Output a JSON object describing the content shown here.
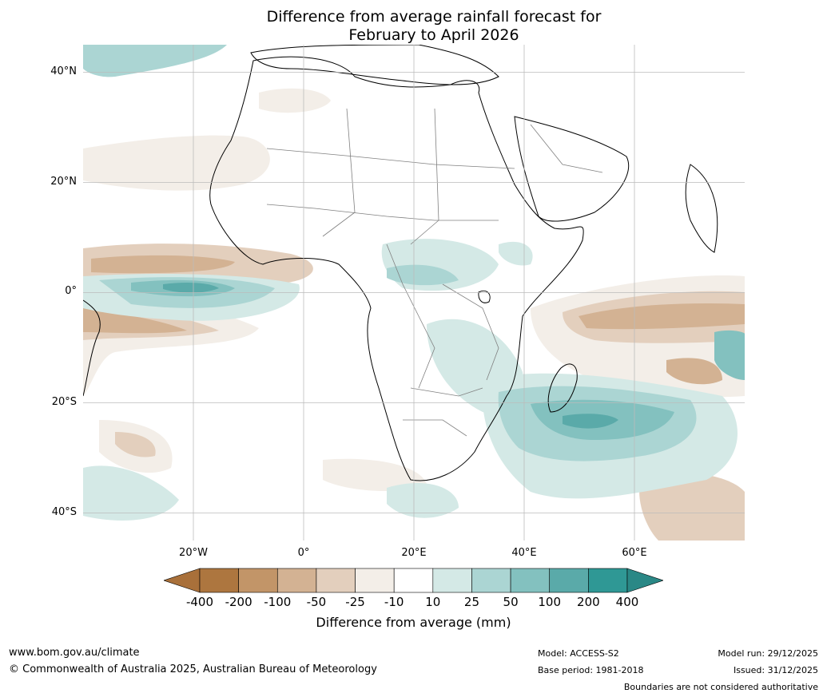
{
  "title": {
    "line1": "Difference from average rainfall forecast for",
    "line2": "February to April 2026"
  },
  "map": {
    "region": "Africa",
    "lat_labels": [
      "40°N",
      "20°N",
      "0°",
      "20°S",
      "40°S"
    ],
    "lon_labels": [
      "20°W",
      "0°",
      "20°E",
      "40°E",
      "60°E"
    ]
  },
  "colorbar": {
    "ticks": [
      "-400",
      "-200",
      "-100",
      "-50",
      "-25",
      "-10",
      "10",
      "25",
      "50",
      "100",
      "200",
      "400"
    ],
    "colors": [
      "#a9703a",
      "#ad763f",
      "#c29568",
      "#d3b293",
      "#e3cfbd",
      "#f3eee8",
      "#ffffff",
      "#d4e9e6",
      "#abd5d3",
      "#83c1bf",
      "#5aaaa9",
      "#2f9895",
      "#2a8886"
    ],
    "label": "Difference from average (mm)"
  },
  "footer": {
    "website": "www.bom.gov.au/climate",
    "copyright": "© Commonwealth of Australia 2025, Australian Bureau of Meteorology",
    "model": "Model: ACCESS-S2",
    "base_period": "Base period: 1981-2018",
    "model_run": "Model run: 29/12/2025",
    "issued": "Issued: 31/12/2025",
    "disclaimer": "Boundaries are not considered authoritative"
  }
}
